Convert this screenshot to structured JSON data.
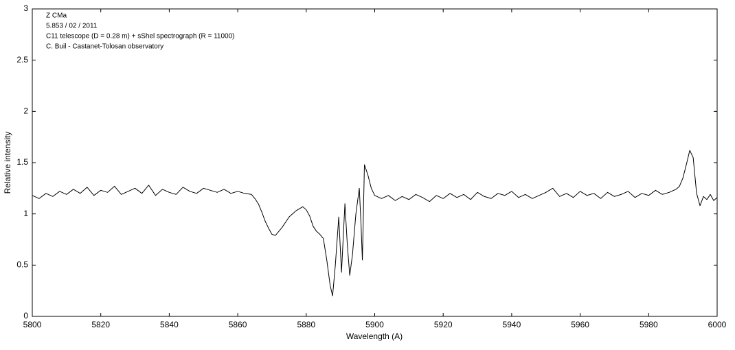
{
  "chart_data": {
    "type": "line",
    "annotations": [
      "Z CMa",
      "5.853 / 02 / 2011",
      "C11 telescope (D = 0.28 m) + sShel spectrograph (R = 11000)",
      "C. Buil - Castanet-Tolosan observatory"
    ],
    "x_label": "Wavelength (A)",
    "y_label": "Relative intensity",
    "xlim": [
      5800,
      6000
    ],
    "ylim": [
      0,
      3
    ],
    "xticks": [
      5800,
      5820,
      5840,
      5860,
      5880,
      5900,
      5920,
      5940,
      5960,
      5980,
      6000
    ],
    "yticks": [
      0,
      0.5,
      1,
      1.5,
      2,
      2.5,
      3
    ],
    "grid": false,
    "x": [
      5800,
      5802,
      5804,
      5806,
      5808,
      5810,
      5812,
      5814,
      5816,
      5818,
      5820,
      5822,
      5824,
      5826,
      5828,
      5830,
      5832,
      5834,
      5836,
      5838,
      5840,
      5842,
      5844,
      5846,
      5848,
      5850,
      5852,
      5854,
      5856,
      5858,
      5860,
      5862,
      5864,
      5865,
      5866,
      5867,
      5868,
      5869,
      5870,
      5871,
      5872,
      5873,
      5874,
      5875,
      5876,
      5877,
      5878,
      5879,
      5880,
      5881,
      5882,
      5883,
      5884,
      5885,
      5886,
      5887,
      5887.7,
      5888.5,
      5889.5,
      5890.3,
      5891.3,
      5892,
      5892.7,
      5893.5,
      5894.5,
      5895.5,
      5896,
      5896.4,
      5897,
      5898,
      5899,
      5900,
      5902,
      5904,
      5906,
      5908,
      5910,
      5912,
      5914,
      5916,
      5918,
      5920,
      5922,
      5924,
      5926,
      5928,
      5930,
      5932,
      5934,
      5936,
      5938,
      5940,
      5942,
      5944,
      5946,
      5948,
      5950,
      5952,
      5954,
      5956,
      5958,
      5960,
      5962,
      5964,
      5966,
      5968,
      5970,
      5972,
      5974,
      5976,
      5978,
      5980,
      5982,
      5984,
      5986,
      5988,
      5989,
      5990,
      5991,
      5992,
      5993,
      5994,
      5995,
      5996,
      5997,
      5998,
      5999,
      6000
    ],
    "series": [
      {
        "name": "Z CMa",
        "color": "#000000",
        "values": [
          1.18,
          1.15,
          1.2,
          1.17,
          1.22,
          1.19,
          1.24,
          1.2,
          1.26,
          1.18,
          1.23,
          1.21,
          1.27,
          1.19,
          1.22,
          1.25,
          1.2,
          1.28,
          1.18,
          1.24,
          1.21,
          1.19,
          1.26,
          1.22,
          1.2,
          1.25,
          1.23,
          1.21,
          1.24,
          1.2,
          1.22,
          1.2,
          1.19,
          1.15,
          1.1,
          1.02,
          0.93,
          0.86,
          0.8,
          0.79,
          0.83,
          0.87,
          0.92,
          0.97,
          1.0,
          1.03,
          1.05,
          1.07,
          1.04,
          0.98,
          0.88,
          0.83,
          0.8,
          0.76,
          0.55,
          0.3,
          0.2,
          0.5,
          0.97,
          0.43,
          1.1,
          0.7,
          0.4,
          0.6,
          1.0,
          1.25,
          0.9,
          0.55,
          1.48,
          1.38,
          1.25,
          1.18,
          1.15,
          1.18,
          1.13,
          1.17,
          1.14,
          1.19,
          1.16,
          1.12,
          1.18,
          1.15,
          1.2,
          1.16,
          1.19,
          1.14,
          1.21,
          1.17,
          1.15,
          1.2,
          1.18,
          1.22,
          1.16,
          1.19,
          1.15,
          1.18,
          1.21,
          1.25,
          1.17,
          1.2,
          1.16,
          1.22,
          1.18,
          1.2,
          1.15,
          1.21,
          1.17,
          1.19,
          1.22,
          1.16,
          1.2,
          1.18,
          1.23,
          1.19,
          1.21,
          1.24,
          1.27,
          1.35,
          1.48,
          1.62,
          1.55,
          1.2,
          1.08,
          1.17,
          1.14,
          1.19,
          1.13,
          1.16
        ]
      }
    ]
  }
}
